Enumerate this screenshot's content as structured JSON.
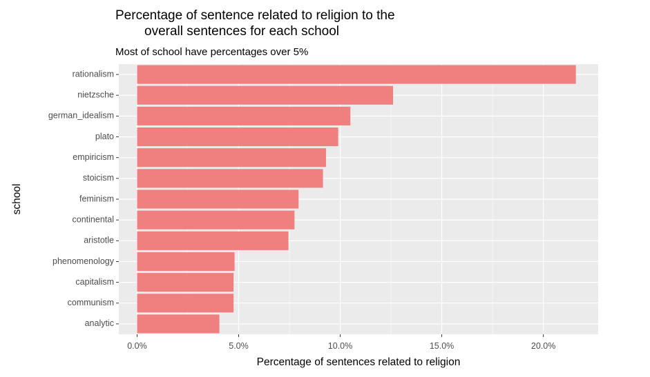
{
  "chart_data": {
    "type": "bar",
    "orientation": "horizontal",
    "title_line1": "Percentage of sentence related to religion to the",
    "title_line2": "overall sentences for each school",
    "subtitle": "Most of school have percentages over 5%",
    "xlabel": "Percentage of sentences related to religion",
    "ylabel": "school",
    "categories": [
      "rationalism",
      "nietzsche",
      "german_idealism",
      "plato",
      "empiricism",
      "stoicism",
      "feminism",
      "continental",
      "aristotle",
      "phenomenology",
      "capitalism",
      "communism",
      "analytic"
    ],
    "values": [
      0.216,
      0.126,
      0.105,
      0.099,
      0.093,
      0.0915,
      0.0795,
      0.0775,
      0.0745,
      0.048,
      0.0475,
      0.0475,
      0.0405
    ],
    "xlim": [
      -0.009,
      0.227
    ],
    "x_ticks": [
      0,
      0.05,
      0.1,
      0.15,
      0.2
    ],
    "x_tick_labels": [
      "0.0%",
      "5.0%",
      "10.0%",
      "15.0%",
      "20.0%"
    ],
    "bar_color": "#F08080",
    "panel_color": "#EBEBEB",
    "grid": true,
    "legend": "none"
  }
}
